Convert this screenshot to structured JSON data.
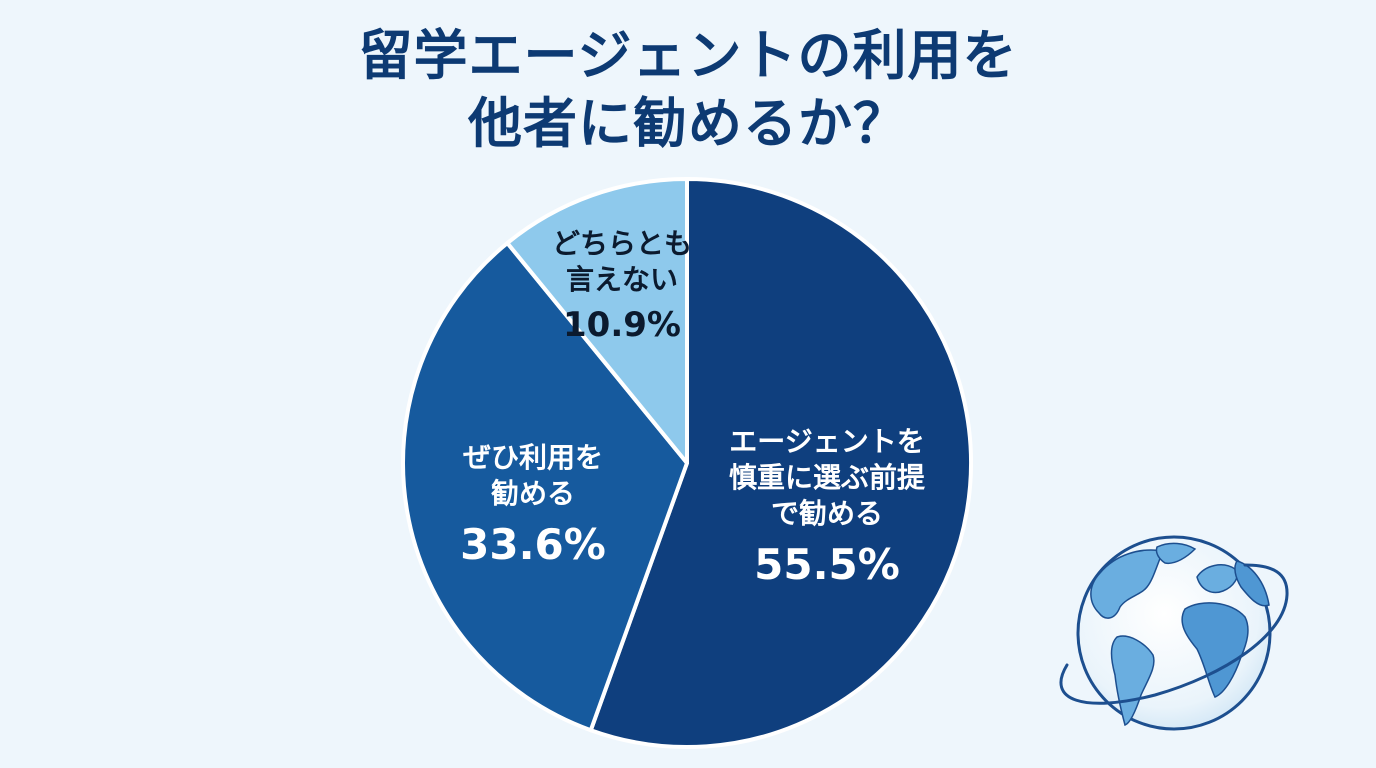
{
  "title": {
    "line1": "留学エージェントの利用を",
    "line2": "他者に勧めるか？"
  },
  "colors": {
    "background": "#eef6fc",
    "title": "#0d3a73",
    "slice_divider": "#ffffff"
  },
  "chart_data": {
    "type": "pie",
    "title": "留学エージェントの利用を他者に勧めるか？",
    "start_angle_deg": 0,
    "direction": "clockwise",
    "unit": "%",
    "categories": [
      "エージェントを慎重に選ぶ前提で勧める",
      "ぜひ利用を勧める",
      "どちらとも言えない"
    ],
    "values": [
      55.5,
      33.6,
      10.9
    ],
    "slices": [
      {
        "label": "エージェントを慎重に選ぶ前提で勧める",
        "label_lines": [
          "エージェントを",
          "慎重に選ぶ前提",
          "で勧める"
        ],
        "value": 55.5,
        "value_text": "55.5%",
        "color": "#0f3f7e",
        "text_color": "#ffffff"
      },
      {
        "label": "ぜひ利用を勧める",
        "label_lines": [
          "ぜひ利用を",
          "勧める"
        ],
        "value": 33.6,
        "value_text": "33.6%",
        "color": "#165a9e",
        "text_color": "#ffffff"
      },
      {
        "label": "どちらとも言えない",
        "label_lines": [
          "どちらとも",
          "言えない"
        ],
        "value": 10.9,
        "value_text": "10.9%",
        "color": "#8ec9ec",
        "text_color": "#0b1a2e"
      }
    ],
    "legend": "none (labels inside slices)"
  },
  "decoration": {
    "icon": "globe-icon"
  }
}
